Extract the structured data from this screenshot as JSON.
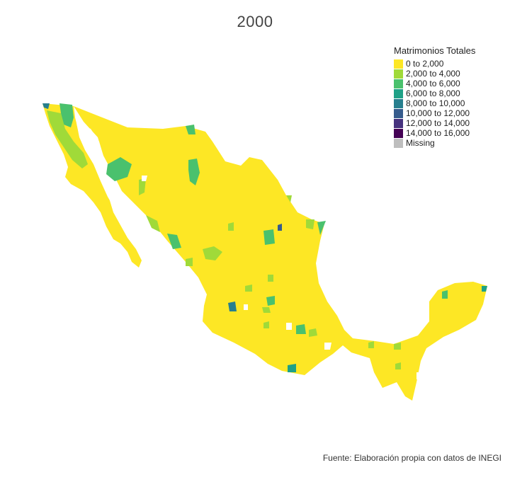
{
  "title": "2000",
  "legend": {
    "title": "Matrimonios Totales",
    "items": [
      {
        "label": "0 to 2,000",
        "color": "#fde725"
      },
      {
        "label": "2,000 to 4,000",
        "color": "#a0da39"
      },
      {
        "label": "4,000 to 6,000",
        "color": "#4ac16d"
      },
      {
        "label": "6,000 to 8,000",
        "color": "#1fa187"
      },
      {
        "label": "8,000 to 10,000",
        "color": "#277f8e"
      },
      {
        "label": "10,000 to 12,000",
        "color": "#365c8d"
      },
      {
        "label": "12,000 to 14,000",
        "color": "#46327e"
      },
      {
        "label": "14,000 to 16,000",
        "color": "#440154"
      },
      {
        "label": "Missing",
        "color": "#bebebe"
      }
    ]
  },
  "caption": "Fuente: Elaboración propia con datos de INEGI"
}
